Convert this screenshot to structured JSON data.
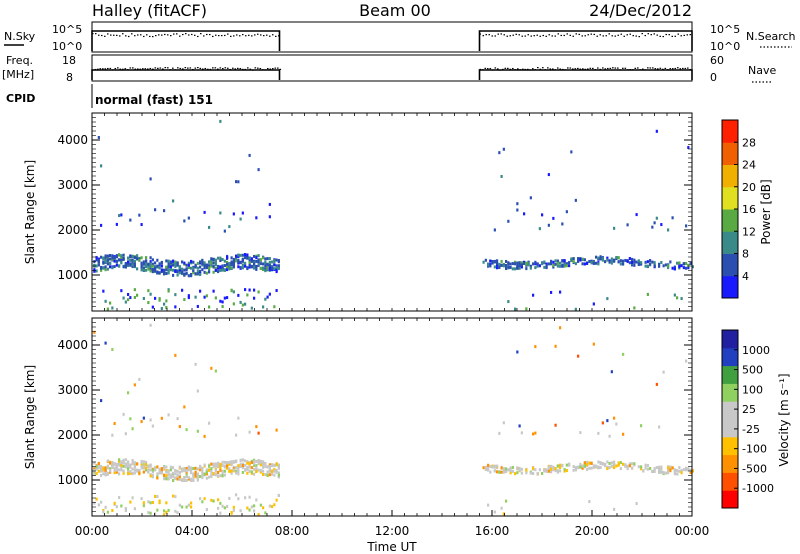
{
  "header": {
    "station": "Halley (fitACF)",
    "beam": "Beam 00",
    "date": "24/Dec/2012"
  },
  "side_labels": {
    "nsky": "N.Sky",
    "nsky_hi": "10^5",
    "nsky_lo": "10^0",
    "nsearch": "N.Search",
    "nsearch_hi": "10^5",
    "nsearch_lo": "10^0",
    "freq": "Freq.",
    "freq_unit": "[MHz]",
    "freq_hi": "18",
    "freq_lo": "8",
    "nave": "Nave",
    "nave_hi": "60",
    "nave_lo": "0",
    "cpid": "CPID",
    "cpid_value": "normal (fast) 151"
  },
  "colors": {
    "trace": "#000000",
    "power_scale": [
      "#1a1aff",
      "#2a4fb0",
      "#3a8a8a",
      "#5aaa44",
      "#e0e020",
      "#f0b000",
      "#f06000",
      "#ff2000"
    ],
    "velocity_scale": [
      "#ff0000",
      "#ff5000",
      "#ff9000",
      "#ffc000",
      "#c8c8c8",
      "#c8c8c8",
      "#90d060",
      "#40a040",
      "#2040c0",
      "#2020a0"
    ]
  },
  "chart_data": [
    {
      "type": "heatmap",
      "name": "power",
      "ylabel": "Slant Range [km]",
      "colorbar_label": "Power [dB]",
      "colorbar_ticks": [
        "4",
        "8",
        "12",
        "16",
        "20",
        "24",
        "28"
      ],
      "yticks": [
        "1000",
        "2000",
        "3000",
        "4000"
      ],
      "ylim": [
        200,
        4600
      ],
      "xlim": [
        0,
        24
      ],
      "data_gap_hours": [
        7.5,
        15.5
      ],
      "grid": false
    },
    {
      "type": "heatmap",
      "name": "velocity",
      "ylabel": "Slant Range [km]",
      "colorbar_label": "Velocity [m s⁻¹]",
      "colorbar_ticks": [
        "-1000",
        "-500",
        "-100",
        "-25",
        "25",
        "100",
        "500",
        "1000"
      ],
      "yticks": [
        "1000",
        "2000",
        "3000",
        "4000"
      ],
      "ylim": [
        200,
        4600
      ],
      "xlim": [
        0,
        24
      ],
      "data_gap_hours": [
        7.5,
        15.5
      ],
      "grid": false
    }
  ],
  "xaxis": {
    "ticks": [
      "00:00",
      "04:00",
      "08:00",
      "12:00",
      "16:00",
      "20:00",
      "00:00"
    ],
    "label": "Time UT"
  }
}
